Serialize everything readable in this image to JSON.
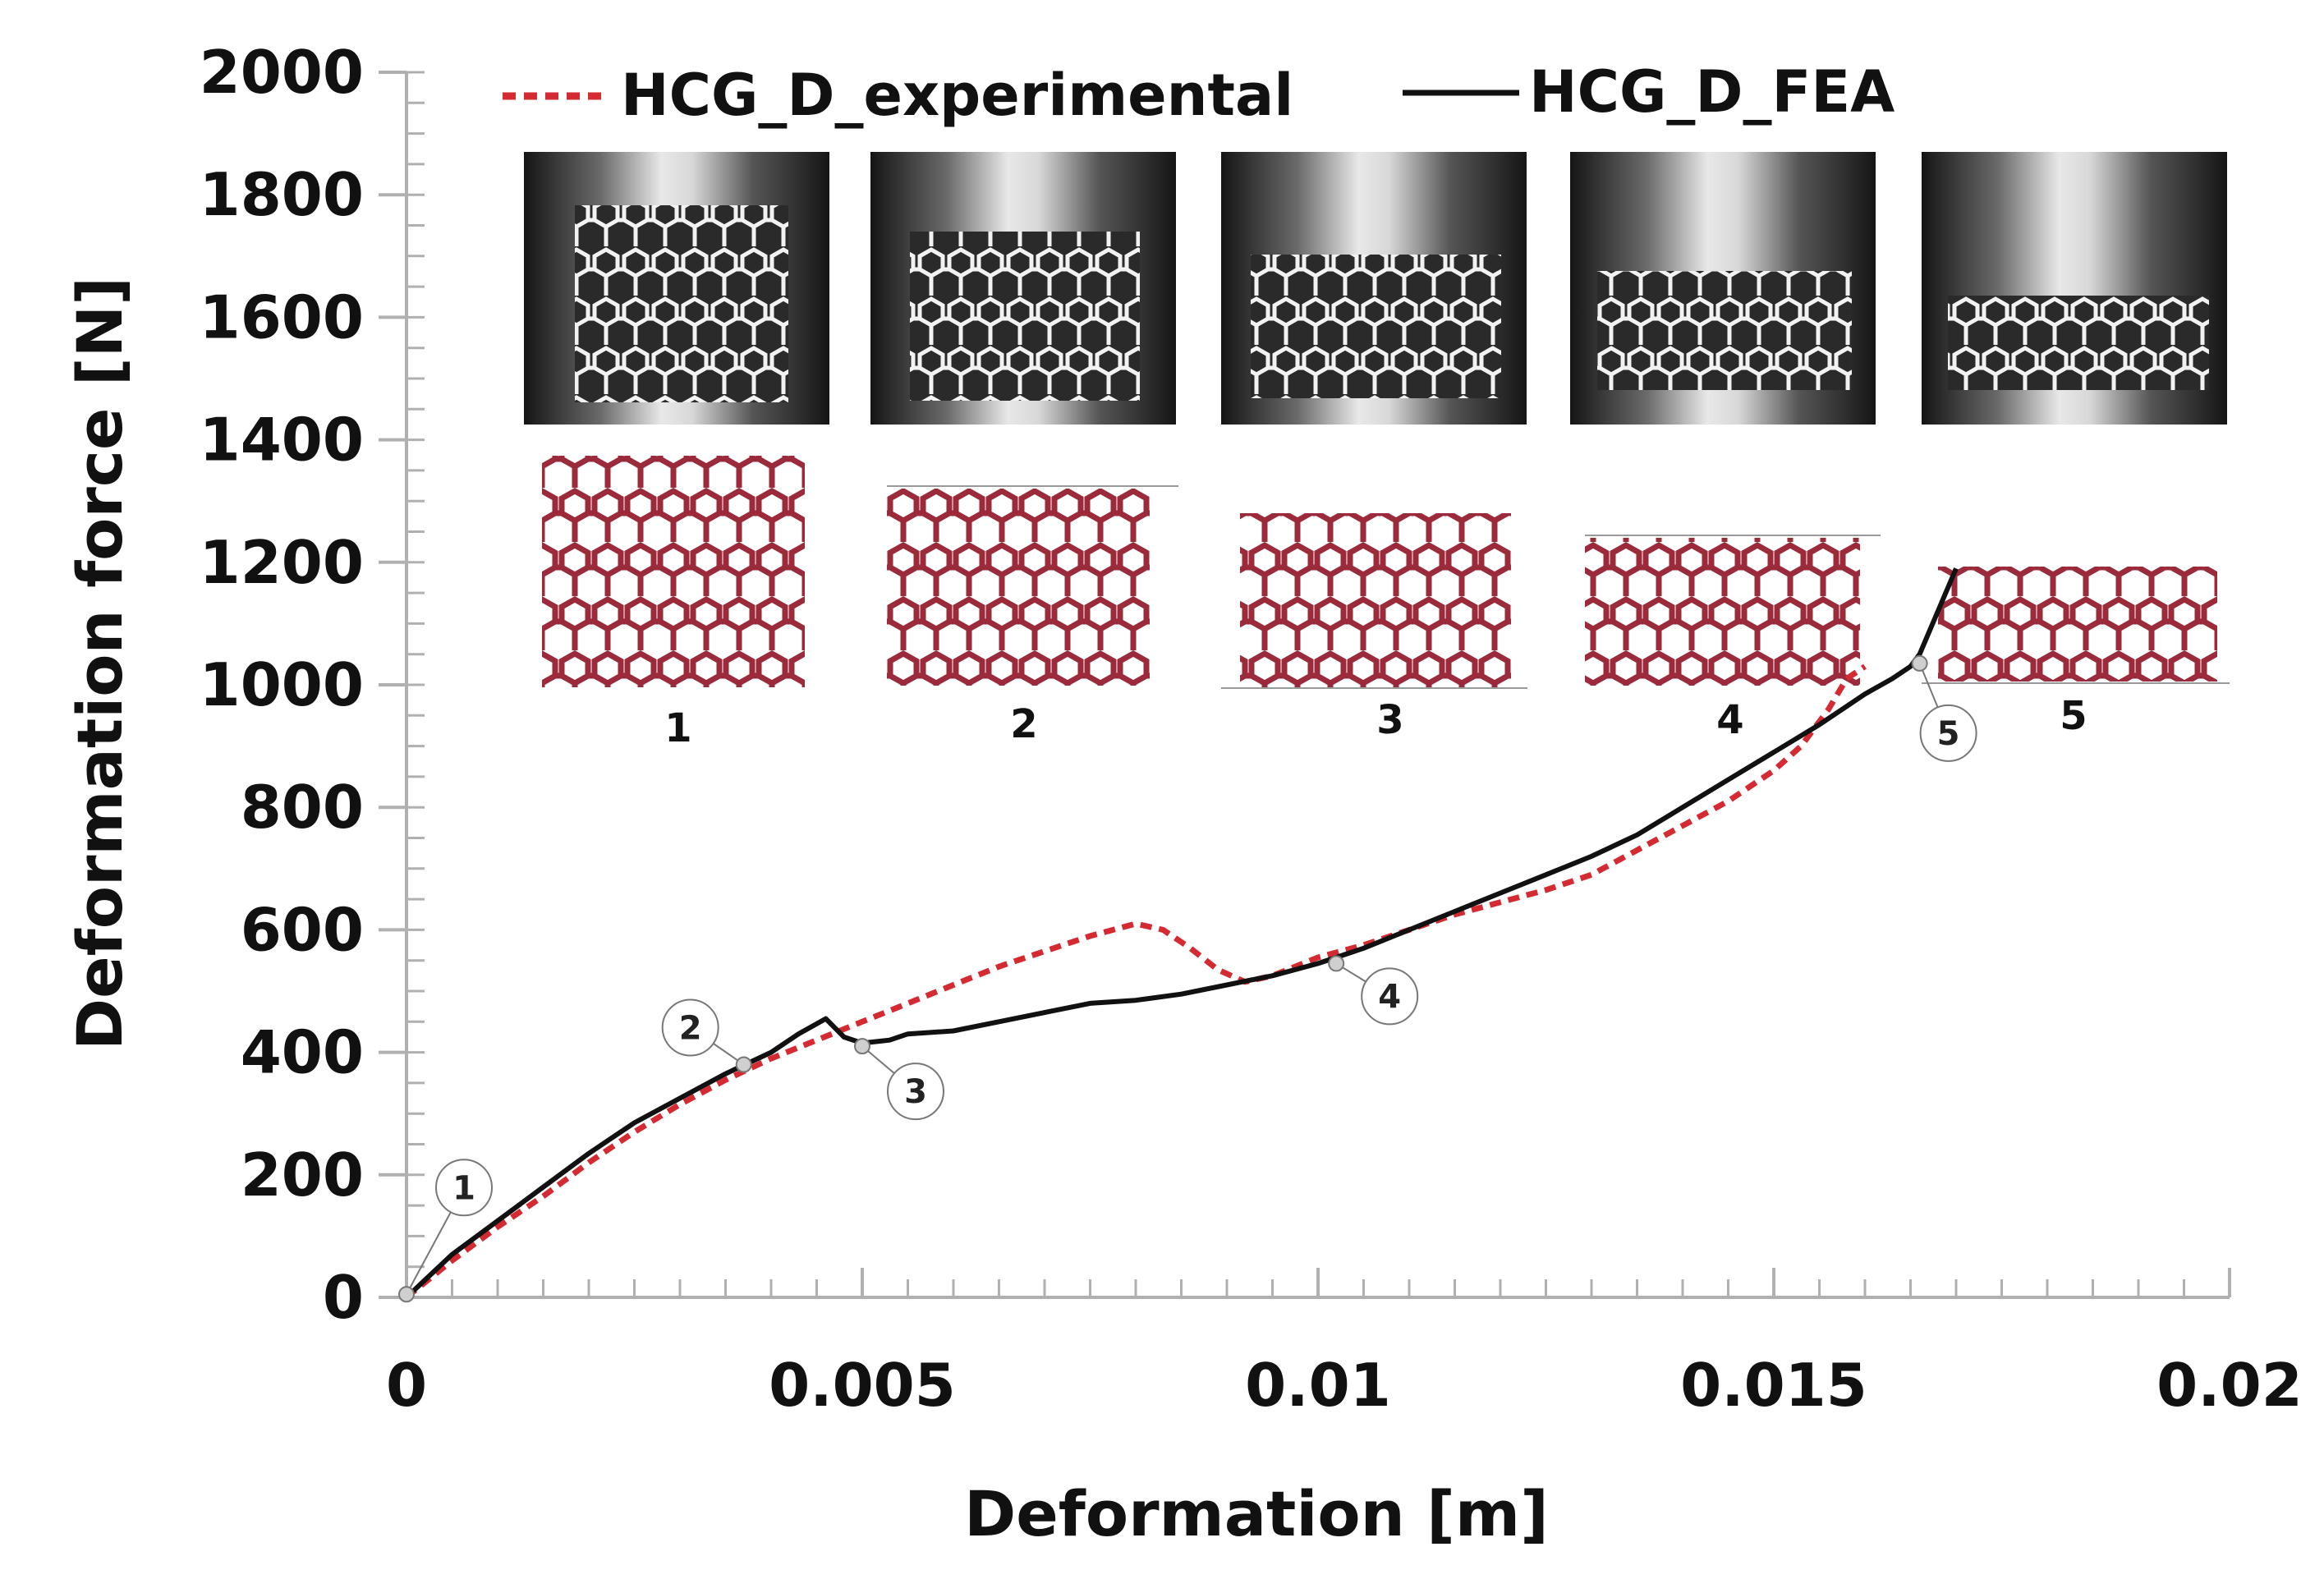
{
  "chart_data": {
    "type": "line",
    "title": "",
    "xlabel": "Deformation [m]",
    "ylabel": "Deformation force [N]",
    "xlim": [
      0,
      0.02
    ],
    "ylim": [
      0,
      2000
    ],
    "x_ticks": [
      0,
      0.005,
      0.01,
      0.015,
      0.02
    ],
    "x_tick_labels": [
      "0",
      "0.005",
      "0.01",
      "0.015",
      "0.02"
    ],
    "y_ticks": [
      0,
      200,
      400,
      600,
      800,
      1000,
      1200,
      1400,
      1600,
      1800,
      2000
    ],
    "y_tick_labels": [
      "0",
      "200",
      "400",
      "600",
      "800",
      "1000",
      "1200",
      "1400",
      "1600",
      "1800",
      "2000"
    ],
    "x_minor_step": 0.0005,
    "y_minor_step": 50,
    "legend_position": "top",
    "series": [
      {
        "name": "HCG_D_experimental",
        "style": "dashed",
        "color": "#d42a32",
        "x": [
          0,
          0.0005,
          0.001,
          0.0015,
          0.002,
          0.0025,
          0.003,
          0.0035,
          0.004,
          0.0045,
          0.005,
          0.0055,
          0.006,
          0.0065,
          0.007,
          0.0075,
          0.008,
          0.0083,
          0.0086,
          0.0089,
          0.0092,
          0.0095,
          0.01,
          0.0105,
          0.011,
          0.0115,
          0.012,
          0.0125,
          0.013,
          0.0135,
          0.014,
          0.0145,
          0.015,
          0.0153,
          0.0156,
          0.0158,
          0.016
        ],
        "y": [
          0,
          60,
          115,
          165,
          220,
          270,
          315,
          355,
          390,
          420,
          450,
          480,
          510,
          540,
          565,
          590,
          610,
          600,
          570,
          535,
          515,
          525,
          555,
          575,
          600,
          625,
          645,
          665,
          690,
          730,
          770,
          810,
          860,
          900,
          960,
          1010,
          1030
        ]
      },
      {
        "name": "HCG_D_FEA",
        "style": "solid",
        "color": "#111111",
        "x": [
          0,
          0.0005,
          0.001,
          0.0015,
          0.002,
          0.0025,
          0.003,
          0.0035,
          0.004,
          0.0043,
          0.0046,
          0.0048,
          0.005,
          0.0053,
          0.0055,
          0.006,
          0.0065,
          0.007,
          0.0075,
          0.008,
          0.0085,
          0.009,
          0.0095,
          0.01,
          0.0105,
          0.011,
          0.0115,
          0.012,
          0.0125,
          0.013,
          0.0135,
          0.014,
          0.0145,
          0.015,
          0.0155,
          0.016,
          0.0163,
          0.0165,
          0.0166,
          0.0168,
          0.017
        ],
        "y": [
          0,
          70,
          125,
          180,
          235,
          285,
          325,
          365,
          400,
          430,
          455,
          425,
          415,
          420,
          430,
          435,
          450,
          465,
          480,
          485,
          495,
          510,
          525,
          545,
          570,
          600,
          630,
          660,
          690,
          720,
          755,
          800,
          845,
          890,
          935,
          985,
          1010,
          1030,
          1050,
          1120,
          1190
        ]
      }
    ],
    "markers": [
      {
        "label": "1",
        "x": 0.0,
        "y": 5
      },
      {
        "label": "2",
        "x": 0.0037,
        "y": 380
      },
      {
        "label": "3",
        "x": 0.005,
        "y": 410
      },
      {
        "label": "4",
        "x": 0.0102,
        "y": 545
      },
      {
        "label": "5",
        "x": 0.0166,
        "y": 1035
      }
    ],
    "insets": [
      {
        "label": "1",
        "name": "stage-1"
      },
      {
        "label": "2",
        "name": "stage-2"
      },
      {
        "label": "3",
        "name": "stage-3"
      },
      {
        "label": "4",
        "name": "stage-4"
      },
      {
        "label": "5",
        "name": "stage-5"
      }
    ]
  }
}
